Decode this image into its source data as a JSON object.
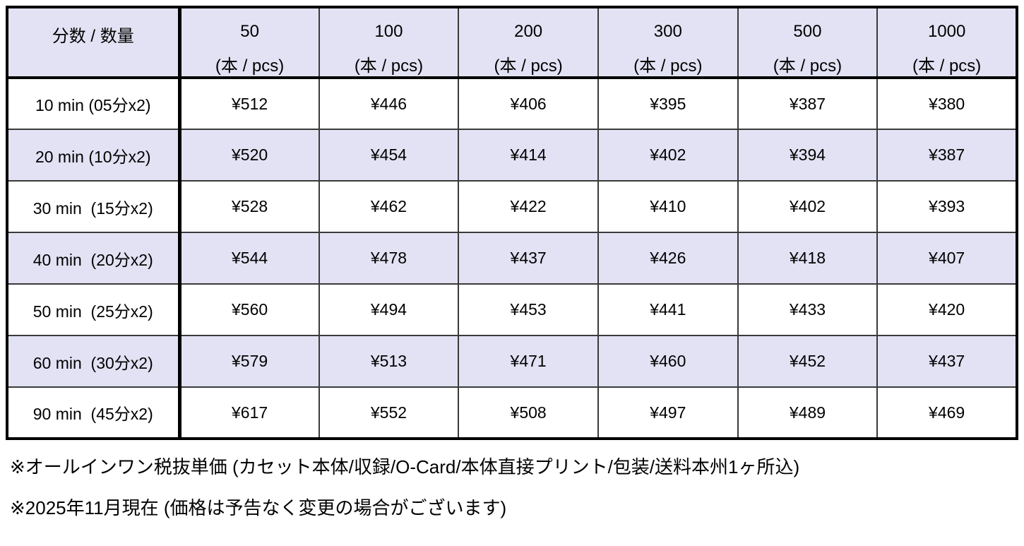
{
  "table": {
    "corner_label": "分数 / 数量",
    "unit_label": "(本 / pcs)",
    "quantities": [
      "50",
      "100",
      "200",
      "300",
      "500",
      "1000"
    ],
    "rows": [
      {
        "label": "10 min (05分x2)",
        "banded": false,
        "prices": [
          "¥512",
          "¥446",
          "¥406",
          "¥395",
          "¥387",
          "¥380"
        ]
      },
      {
        "label": "20 min (10分x2)",
        "banded": true,
        "prices": [
          "¥520",
          "¥454",
          "¥414",
          "¥402",
          "¥394",
          "¥387"
        ]
      },
      {
        "label": "30 min  (15分x2)",
        "banded": false,
        "prices": [
          "¥528",
          "¥462",
          "¥422",
          "¥410",
          "¥402",
          "¥393"
        ]
      },
      {
        "label": "40 min  (20分x2)",
        "banded": true,
        "prices": [
          "¥544",
          "¥478",
          "¥437",
          "¥426",
          "¥418",
          "¥407"
        ]
      },
      {
        "label": "50 min  (25分x2)",
        "banded": false,
        "prices": [
          "¥560",
          "¥494",
          "¥453",
          "¥441",
          "¥433",
          "¥420"
        ]
      },
      {
        "label": "60 min  (30分x2)",
        "banded": true,
        "prices": [
          "¥579",
          "¥513",
          "¥471",
          "¥460",
          "¥452",
          "¥437"
        ]
      },
      {
        "label": "90 min  (45分x2)",
        "banded": false,
        "prices": [
          "¥617",
          "¥552",
          "¥508",
          "¥497",
          "¥489",
          "¥469"
        ]
      }
    ]
  },
  "footnotes": [
    "※オールインワン税抜単価 (カセット本体/収録/O-Card/本体直接プリント/包装/送料本州1ヶ所込)",
    "※2025年11月現在 (価格は予告なく変更の場合がございます)"
  ],
  "colors": {
    "band": "#e2e2f4",
    "thick_border": "#000000",
    "thin_border": "#3a3a3a"
  }
}
